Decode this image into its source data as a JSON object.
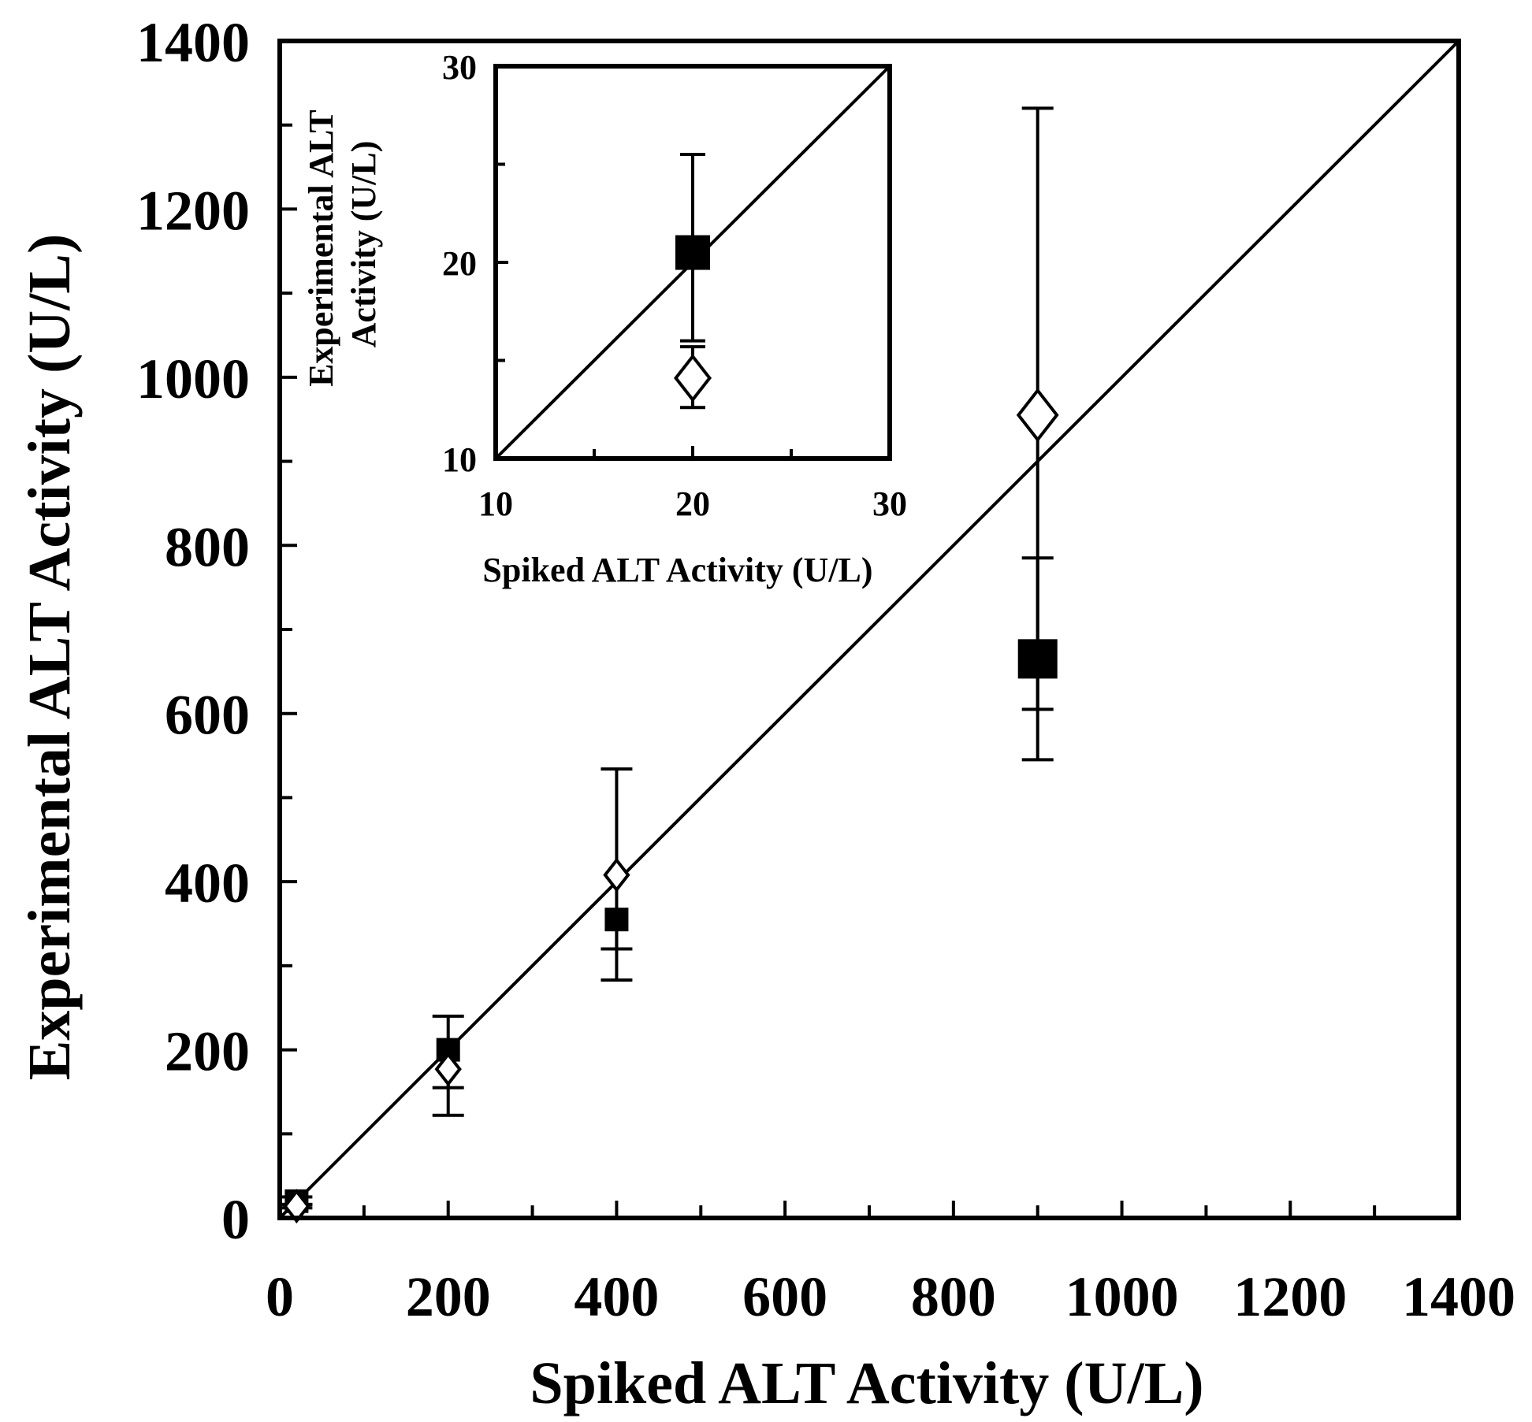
{
  "chart_data": [
    {
      "type": "scatter",
      "title": "",
      "xlabel": "Spiked ALT Activity (U/L)",
      "ylabel": "Experimental ALT Activity (U/L)",
      "xlim": [
        0,
        1400
      ],
      "ylim": [
        0,
        1400
      ],
      "x_ticks": [
        "0",
        "200",
        "400",
        "600",
        "800",
        "1000",
        "1200",
        "1400"
      ],
      "y_ticks": [
        "0",
        "200",
        "400",
        "600",
        "800",
        "1000",
        "1200",
        "1400"
      ],
      "reference_line": {
        "from": [
          0,
          0
        ],
        "to": [
          1400,
          1400
        ]
      },
      "grid": false,
      "legend": "none",
      "series": [
        {
          "marker": "filled-square",
          "color": "#000000",
          "points": [
            {
              "x": 20,
              "y": 20,
              "err_low": 4,
              "err_high": 5
            },
            {
              "x": 200,
              "y": 200,
              "err_low": 45,
              "err_high": 40
            },
            {
              "x": 400,
              "y": 355,
              "err_low": 72,
              "err_high": 0
            },
            {
              "x": 900,
              "y": 665,
              "err_low": 120,
              "err_high": 120
            }
          ]
        },
        {
          "marker": "open-diamond",
          "color": "#000000",
          "points": [
            {
              "x": 20,
              "y": 14,
              "err_low": 2,
              "err_high": 2
            },
            {
              "x": 200,
              "y": 177,
              "err_low": 55,
              "err_high": 0
            },
            {
              "x": 400,
              "y": 408,
              "err_low": 88,
              "err_high": 126
            },
            {
              "x": 900,
              "y": 955,
              "err_low": 350,
              "err_high": 365
            }
          ]
        }
      ]
    },
    {
      "type": "scatter",
      "title": "",
      "xlabel": "Spiked ALT  Activity (U/L)",
      "ylabel": "Experimental ALT Activity (U/L)",
      "ylabel_lines": [
        "Experimental ALT",
        "Activity (U/L)"
      ],
      "xlim": [
        10,
        30
      ],
      "ylim": [
        10,
        30
      ],
      "x_ticks": [
        "10",
        "20",
        "30"
      ],
      "y_ticks": [
        "10",
        "20",
        "30"
      ],
      "reference_line": {
        "from": [
          10,
          10
        ],
        "to": [
          30,
          30
        ]
      },
      "grid": false,
      "legend": "none",
      "series": [
        {
          "marker": "filled-square",
          "color": "#000000",
          "points": [
            {
              "x": 20,
              "y": 20.5,
              "err_low": 4.5,
              "err_high": 5.0
            }
          ]
        },
        {
          "marker": "open-diamond",
          "color": "#000000",
          "points": [
            {
              "x": 20,
              "y": 14.1,
              "err_low": 1.5,
              "err_high": 1.6
            }
          ]
        }
      ]
    }
  ]
}
